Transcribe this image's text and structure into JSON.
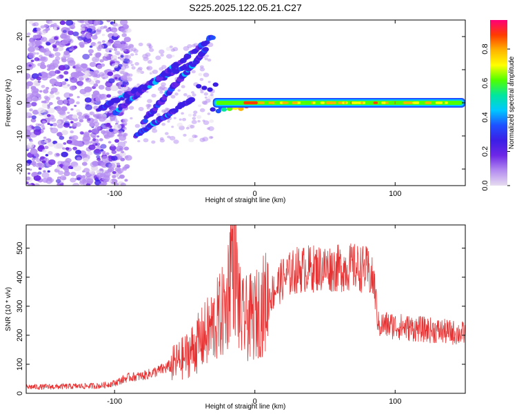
{
  "figure": {
    "title": "S225.2025.122.05.21.C27"
  },
  "colors": {
    "snr_line": "#e63232",
    "colormap": [
      "#e6dcf0",
      "#b48cf0",
      "#6e28e6",
      "#3c1ee6",
      "#1e50ff",
      "#00c8ff",
      "#00e6a0",
      "#50ff00",
      "#ffff00",
      "#ffb400",
      "#ff3c00",
      "#ff0078"
    ]
  },
  "chart_data": [
    {
      "type": "heatmap",
      "xlabel": "Height of straight line (km)",
      "ylabel": "Frequency (Hz)",
      "xlim": [
        -163,
        150
      ],
      "ylim": [
        -25,
        25
      ],
      "xticks": [
        -100,
        0,
        100
      ],
      "yticks": [
        -20,
        -10,
        0,
        10,
        20
      ],
      "description_features": {
        "noise_region_x": [
          -163,
          -100
        ],
        "diagonal_branches": [
          {
            "x": [
              -112,
              -40
            ],
            "y": [
              -2,
              13
            ]
          },
          {
            "x": [
              -100,
              -30
            ],
            "y": [
              -3,
              20
            ]
          },
          {
            "x": [
              -85,
              -45
            ],
            "y": [
              -10,
              1
            ]
          },
          {
            "x": [
              -80,
              -35
            ],
            "y": [
              -6,
              16
            ]
          }
        ],
        "steady_band": {
          "x": [
            -30,
            150
          ],
          "y": 0,
          "peak_amplitude": 0.92
        }
      },
      "colorbar": {
        "label": "Normalized spectral amplitude",
        "min": 0,
        "max": 0.97,
        "ticks": [
          0.0,
          0.2,
          0.4,
          0.6,
          0.8
        ]
      }
    },
    {
      "type": "line",
      "xlabel": "Height of straight line (km)",
      "ylabel": "SNR (10 * v/v)",
      "xlim": [
        -163,
        150
      ],
      "ylim": [
        0,
        580
      ],
      "xticks": [
        -100,
        0,
        100
      ],
      "yticks": [
        0,
        100,
        200,
        300,
        400,
        500
      ],
      "series": [
        {
          "x": [
            -163,
            -150,
            -130,
            -110,
            -100,
            -90,
            -80,
            -70,
            -60,
            -50,
            -40,
            -30,
            -20,
            -16,
            -10,
            0,
            10,
            20,
            30,
            40,
            50,
            60,
            70,
            80,
            85,
            88,
            95,
            110,
            130,
            150
          ],
          "y": [
            22,
            22,
            24,
            26,
            35,
            55,
            60,
            75,
            95,
            125,
            175,
            230,
            300,
            520,
            250,
            265,
            330,
            395,
            425,
            430,
            432,
            430,
            435,
            425,
            380,
            235,
            235,
            225,
            215,
            205
          ]
        }
      ]
    }
  ]
}
